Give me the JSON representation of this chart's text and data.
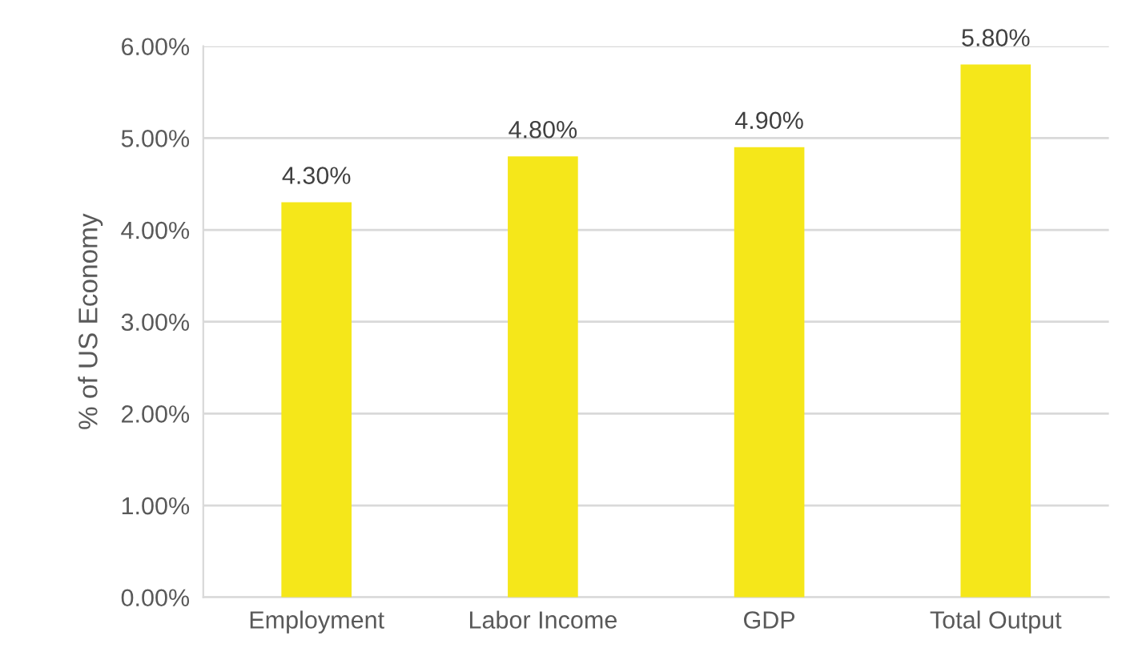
{
  "chart_data": {
    "type": "bar",
    "ylabel": "% of US Economy",
    "categories": [
      "Employment",
      "Labor Income",
      "GDP",
      "Total Output"
    ],
    "values": [
      4.3,
      4.8,
      4.9,
      5.8
    ],
    "color": "#f5e71a",
    "value_labels": [
      "4.30%",
      "4.80%",
      "4.90%",
      "5.80%"
    ],
    "ylim": [
      0,
      6
    ],
    "yticks": [
      {
        "value": 0,
        "label": "0.00%"
      },
      {
        "value": 1,
        "label": "1.00%"
      },
      {
        "value": 2,
        "label": "2.00%"
      },
      {
        "value": 3,
        "label": "3.00%"
      },
      {
        "value": 4,
        "label": "4.00%"
      },
      {
        "value": 5,
        "label": "5.00%"
      },
      {
        "value": 6,
        "label": "6.00%"
      }
    ],
    "grid": "y",
    "legend": false
  }
}
